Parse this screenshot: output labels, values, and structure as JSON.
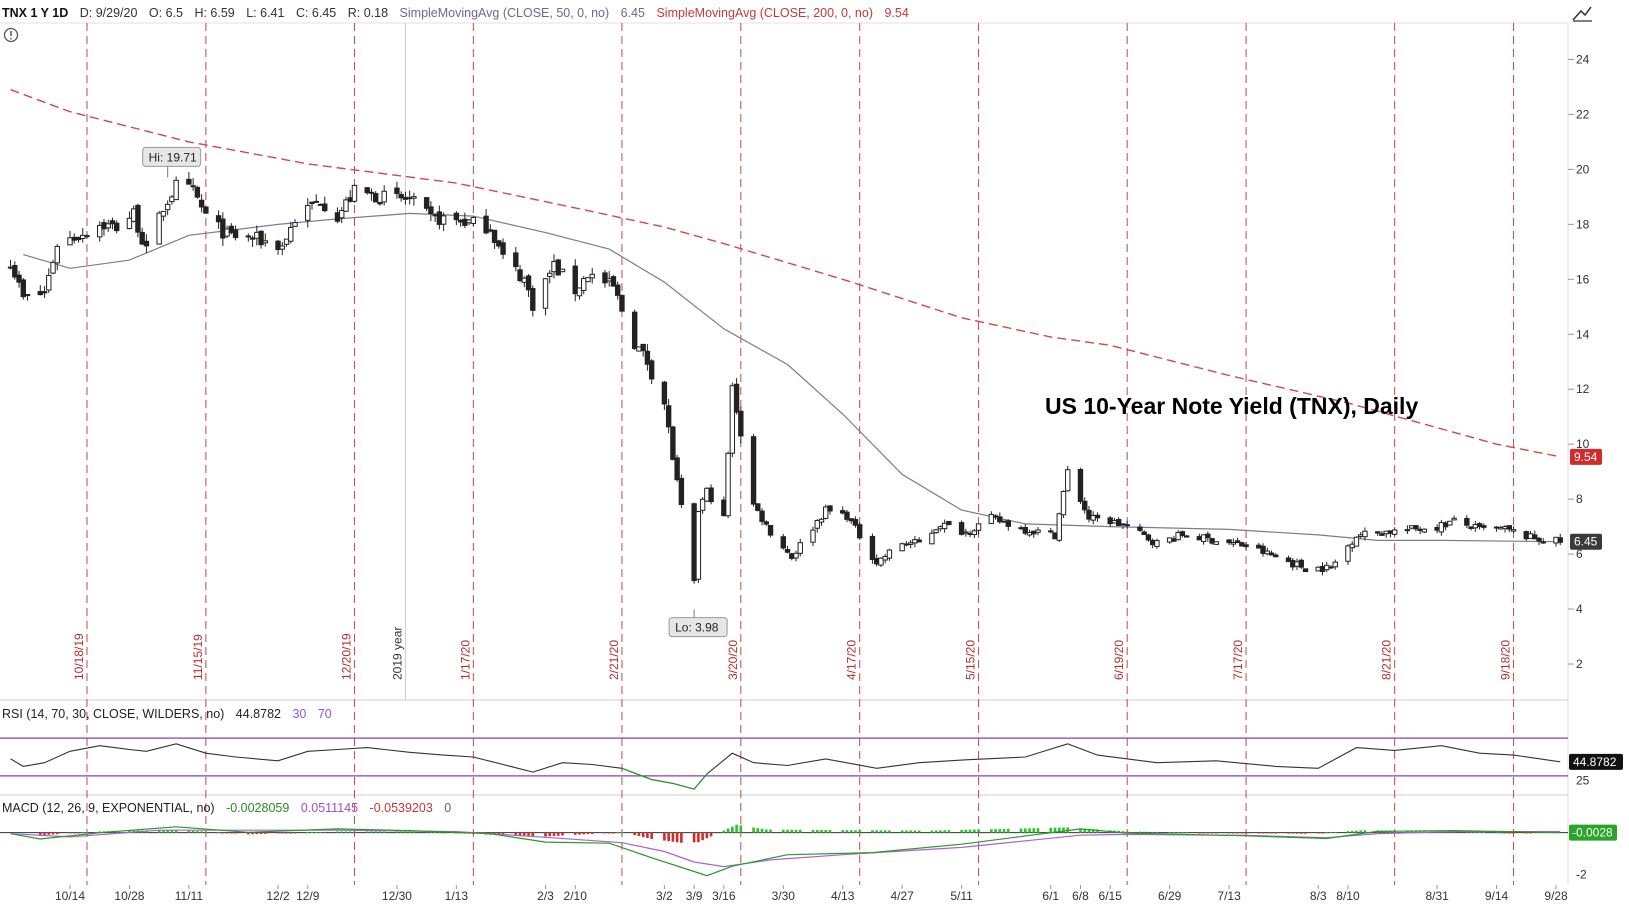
{
  "header": {
    "symbol": "TNX 1 Y 1D",
    "date": "D: 9/29/20",
    "open": "O: 6.5",
    "high": "H: 6.59",
    "low": "L: 6.41",
    "close": "C: 6.45",
    "range": "R: 0.18",
    "sma50_label": "SimpleMovingAvg (CLOSE, 50, 0, no)",
    "sma50_value": "6.45",
    "sma200_label": "SimpleMovingAvg (CLOSE, 200, 0, no)",
    "sma200_value": "9.54"
  },
  "rsi_header": {
    "label": "RSI (14, 70, 30, CLOSE, WILDERS, no)",
    "value": "44.8782",
    "oversold": "30",
    "overbought": "70"
  },
  "macd_header": {
    "label": "MACD (12, 26, 9, EXPONENTIAL, no)",
    "value": "-0.0028059",
    "avg": "0.0511145",
    "diff": "-0.0539203",
    "zero": "0"
  },
  "colors": {
    "sma50": "#7a7a9a",
    "sma200": "#d04a4a",
    "rsi_line": "#333333",
    "rsi_bands": "#8a3fb5",
    "macd_value": "#2a9a2a",
    "macd_avg": "#b060d0",
    "hist_pos": "#2ec22e",
    "hist_neg": "#d62a2a",
    "vline": "#c24848"
  },
  "icons": {
    "alert": "alert-circle-icon",
    "drawing": "drawing-tool-icon"
  },
  "chart_data": {
    "type": "candlestick",
    "title": "US 10-Year Note Yield (TNX), Daily",
    "ylim": [
      0.8,
      25
    ],
    "yticks": [
      2,
      4,
      6,
      8,
      10,
      12,
      14,
      16,
      18,
      20,
      22,
      24
    ],
    "xtick_labels": [
      "10/14",
      "10/28",
      "11/11",
      "12/2",
      "12/9",
      "12/30",
      "1/13",
      "2/3",
      "2/10",
      "3/2",
      "3/9",
      "3/16",
      "3/30",
      "4/13",
      "4/27",
      "5/11",
      "6/1",
      "6/8",
      "6/15",
      "6/29",
      "7/13",
      "8/3",
      "8/10",
      "8/31",
      "9/14",
      "9/28"
    ],
    "xtick_dates": [
      "2019-10-14",
      "2019-10-28",
      "2019-11-11",
      "2019-12-02",
      "2019-12-09",
      "2019-12-30",
      "2020-01-13",
      "2020-02-03",
      "2020-02-10",
      "2020-03-02",
      "2020-03-09",
      "2020-03-16",
      "2020-03-30",
      "2020-04-13",
      "2020-04-27",
      "2020-05-11",
      "2020-06-01",
      "2020-06-08",
      "2020-06-15",
      "2020-06-29",
      "2020-07-13",
      "2020-08-03",
      "2020-08-10",
      "2020-08-31",
      "2020-09-14",
      "2020-09-28"
    ],
    "expiration_lines": [
      {
        "date": "2019-10-18",
        "label": "10/18/19"
      },
      {
        "date": "2019-11-15",
        "label": "11/15/19"
      },
      {
        "date": "2019-12-20",
        "label": "12/20/19"
      },
      {
        "date": "2020-01-17",
        "label": "1/17/20"
      },
      {
        "date": "2020-02-21",
        "label": "2/21/20"
      },
      {
        "date": "2020-03-20",
        "label": "3/20/20"
      },
      {
        "date": "2020-04-17",
        "label": "4/17/20"
      },
      {
        "date": "2020-05-15",
        "label": "5/15/20"
      },
      {
        "date": "2020-06-19",
        "label": "6/19/20"
      },
      {
        "date": "2020-07-17",
        "label": "7/17/20"
      },
      {
        "date": "2020-08-21",
        "label": "8/21/20"
      },
      {
        "date": "2020-09-18",
        "label": "9/18/20"
      }
    ],
    "year_marker": {
      "date": "2020-01-01",
      "label": "2019 year"
    },
    "close_points": [
      [
        "2019-09-30",
        16.7
      ],
      [
        "2019-10-03",
        15.3
      ],
      [
        "2019-10-08",
        15.5
      ],
      [
        "2019-10-11",
        17.3
      ],
      [
        "2019-10-16",
        17.6
      ],
      [
        "2019-10-21",
        18.0
      ],
      [
        "2019-10-25",
        17.9
      ],
      [
        "2019-10-29",
        18.4
      ],
      [
        "2019-11-01",
        17.0
      ],
      [
        "2019-11-05",
        18.6
      ],
      [
        "2019-11-08",
        19.4
      ],
      [
        "2019-11-12",
        19.2
      ],
      [
        "2019-11-15",
        18.3
      ],
      [
        "2019-11-20",
        17.6
      ],
      [
        "2019-11-26",
        17.5
      ],
      [
        "2019-12-03",
        17.2
      ],
      [
        "2019-12-06",
        18.2
      ],
      [
        "2019-12-12",
        18.9
      ],
      [
        "2019-12-16",
        18.3
      ],
      [
        "2019-12-20",
        19.2
      ],
      [
        "2019-12-26",
        19.0
      ],
      [
        "2020-01-02",
        18.9
      ],
      [
        "2020-01-07",
        18.2
      ],
      [
        "2020-01-10",
        18.2
      ],
      [
        "2020-01-15",
        18.1
      ],
      [
        "2020-01-21",
        17.9
      ],
      [
        "2020-01-24",
        16.8
      ],
      [
        "2020-01-29",
        16.0
      ],
      [
        "2020-01-31",
        15.1
      ],
      [
        "2020-02-05",
        16.5
      ],
      [
        "2020-02-10",
        15.6
      ],
      [
        "2020-02-13",
        16.2
      ],
      [
        "2020-02-19",
        15.7
      ],
      [
        "2020-02-24",
        13.7
      ],
      [
        "2020-02-27",
        13.0
      ],
      [
        "2020-03-02",
        11.5
      ],
      [
        "2020-03-04",
        9.5
      ],
      [
        "2020-03-06",
        7.7
      ],
      [
        "2020-03-09",
        4.9
      ],
      [
        "2020-03-10",
        7.6
      ],
      [
        "2020-03-12",
        8.3
      ],
      [
        "2020-03-16",
        7.3
      ],
      [
        "2020-03-18",
        12.0
      ],
      [
        "2020-03-19",
        11.3
      ],
      [
        "2020-03-23",
        7.8
      ],
      [
        "2020-03-27",
        6.8
      ],
      [
        "2020-04-01",
        5.9
      ],
      [
        "2020-04-07",
        7.2
      ],
      [
        "2020-04-09",
        7.6
      ],
      [
        "2020-04-14",
        7.4
      ],
      [
        "2020-04-21",
        5.7
      ],
      [
        "2020-04-27",
        6.4
      ],
      [
        "2020-05-01",
        6.4
      ],
      [
        "2020-05-06",
        7.1
      ],
      [
        "2020-05-12",
        6.8
      ],
      [
        "2020-05-18",
        7.3
      ],
      [
        "2020-05-26",
        6.9
      ],
      [
        "2020-06-02",
        6.7
      ],
      [
        "2020-06-05",
        9.0
      ],
      [
        "2020-06-10",
        7.3
      ],
      [
        "2020-06-15",
        7.2
      ],
      [
        "2020-06-19",
        7.0
      ],
      [
        "2020-06-26",
        6.4
      ],
      [
        "2020-07-02",
        6.7
      ],
      [
        "2020-07-10",
        6.5
      ],
      [
        "2020-07-17",
        6.3
      ],
      [
        "2020-07-24",
        5.9
      ],
      [
        "2020-07-31",
        5.5
      ],
      [
        "2020-08-06",
        5.5
      ],
      [
        "2020-08-12",
        6.7
      ],
      [
        "2020-08-18",
        6.8
      ],
      [
        "2020-08-25",
        6.9
      ],
      [
        "2020-08-31",
        7.0
      ],
      [
        "2020-09-04",
        7.2
      ],
      [
        "2020-09-10",
        6.9
      ],
      [
        "2020-09-16",
        6.9
      ],
      [
        "2020-09-22",
        6.6
      ],
      [
        "2020-09-29",
        6.45
      ]
    ],
    "sma50": [
      [
        "2019-10-03",
        16.9
      ],
      [
        "2019-10-14",
        16.4
      ],
      [
        "2019-10-28",
        16.7
      ],
      [
        "2019-11-11",
        17.6
      ],
      [
        "2019-12-02",
        18.0
      ],
      [
        "2019-12-16",
        18.2
      ],
      [
        "2020-01-02",
        18.4
      ],
      [
        "2020-01-17",
        18.3
      ],
      [
        "2020-02-03",
        17.7
      ],
      [
        "2020-02-18",
        17.1
      ],
      [
        "2020-03-02",
        15.9
      ],
      [
        "2020-03-16",
        14.2
      ],
      [
        "2020-03-31",
        12.9
      ],
      [
        "2020-04-13",
        11.1
      ],
      [
        "2020-04-27",
        8.9
      ],
      [
        "2020-05-11",
        7.6
      ],
      [
        "2020-05-26",
        7.1
      ],
      [
        "2020-06-15",
        7.0
      ],
      [
        "2020-07-13",
        6.9
      ],
      [
        "2020-08-03",
        6.7
      ],
      [
        "2020-08-17",
        6.5
      ],
      [
        "2020-09-01",
        6.5
      ],
      [
        "2020-09-29",
        6.45
      ]
    ],
    "sma200": [
      [
        "2019-09-30",
        22.9
      ],
      [
        "2019-10-14",
        22.1
      ],
      [
        "2019-11-11",
        21.0
      ],
      [
        "2019-12-09",
        20.2
      ],
      [
        "2020-01-13",
        19.5
      ],
      [
        "2020-02-10",
        18.6
      ],
      [
        "2020-03-02",
        17.9
      ],
      [
        "2020-03-16",
        17.3
      ],
      [
        "2020-04-13",
        16.0
      ],
      [
        "2020-05-11",
        14.6
      ],
      [
        "2020-06-01",
        13.9
      ],
      [
        "2020-06-15",
        13.6
      ],
      [
        "2020-07-13",
        12.5
      ],
      [
        "2020-08-10",
        11.5
      ],
      [
        "2020-08-31",
        10.6
      ],
      [
        "2020-09-14",
        10.0
      ],
      [
        "2020-09-29",
        9.54
      ]
    ],
    "annotations": [
      {
        "label": "Hi: 19.71",
        "date": "2019-11-06",
        "value": 19.71
      },
      {
        "label": "Lo: 3.98",
        "date": "2020-03-09",
        "value": 3.98
      }
    ],
    "last_price_tags": [
      {
        "label": "9.54",
        "value": 9.54,
        "series": "sma200"
      },
      {
        "label": "6.45",
        "value": 6.45,
        "series": "close"
      }
    ]
  },
  "rsi_data": {
    "ylim": [
      15,
      85
    ],
    "yticks": [
      25
    ],
    "levels": [
      30,
      70
    ],
    "last_value_label": "44.8782",
    "points": [
      [
        "2019-09-30",
        48
      ],
      [
        "2019-10-03",
        40
      ],
      [
        "2019-10-08",
        44
      ],
      [
        "2019-10-14",
        56
      ],
      [
        "2019-10-21",
        62
      ],
      [
        "2019-10-28",
        58
      ],
      [
        "2019-11-01",
        56
      ],
      [
        "2019-11-08",
        64
      ],
      [
        "2019-11-15",
        54
      ],
      [
        "2019-11-22",
        50
      ],
      [
        "2019-12-02",
        46
      ],
      [
        "2019-12-09",
        56
      ],
      [
        "2019-12-16",
        58
      ],
      [
        "2019-12-23",
        60
      ],
      [
        "2020-01-02",
        55
      ],
      [
        "2020-01-10",
        52
      ],
      [
        "2020-01-17",
        50
      ],
      [
        "2020-01-24",
        42
      ],
      [
        "2020-01-31",
        34
      ],
      [
        "2020-02-07",
        44
      ],
      [
        "2020-02-14",
        42
      ],
      [
        "2020-02-21",
        38
      ],
      [
        "2020-02-28",
        26
      ],
      [
        "2020-03-04",
        22
      ],
      [
        "2020-03-09",
        16
      ],
      [
        "2020-03-12",
        32
      ],
      [
        "2020-03-18",
        54
      ],
      [
        "2020-03-23",
        44
      ],
      [
        "2020-03-31",
        41
      ],
      [
        "2020-04-09",
        48
      ],
      [
        "2020-04-21",
        38
      ],
      [
        "2020-05-01",
        44
      ],
      [
        "2020-05-12",
        47
      ],
      [
        "2020-05-26",
        50
      ],
      [
        "2020-06-05",
        64
      ],
      [
        "2020-06-12",
        52
      ],
      [
        "2020-06-26",
        44
      ],
      [
        "2020-07-10",
        46
      ],
      [
        "2020-07-24",
        40
      ],
      [
        "2020-08-03",
        38
      ],
      [
        "2020-08-12",
        60
      ],
      [
        "2020-08-21",
        57
      ],
      [
        "2020-09-01",
        62
      ],
      [
        "2020-09-10",
        54
      ],
      [
        "2020-09-18",
        52
      ],
      [
        "2020-09-29",
        44.88
      ]
    ]
  },
  "macd_data": {
    "ylim": [
      -2.4,
      0.7
    ],
    "yticks": [
      -2
    ],
    "last_value_label": "-0.0028",
    "value_line": [
      [
        "2019-09-30",
        -0.05
      ],
      [
        "2019-10-07",
        -0.3
      ],
      [
        "2019-10-21",
        0.0
      ],
      [
        "2019-11-08",
        0.28
      ],
      [
        "2019-11-25",
        0.02
      ],
      [
        "2019-12-16",
        0.18
      ],
      [
        "2020-01-02",
        0.1
      ],
      [
        "2020-01-21",
        -0.05
      ],
      [
        "2020-02-03",
        -0.45
      ],
      [
        "2020-02-18",
        -0.5
      ],
      [
        "2020-02-28",
        -1.2
      ],
      [
        "2020-03-09",
        -1.85
      ],
      [
        "2020-03-12",
        -2.05
      ],
      [
        "2020-03-18",
        -1.6
      ],
      [
        "2020-03-31",
        -1.05
      ],
      [
        "2020-04-20",
        -0.95
      ],
      [
        "2020-05-11",
        -0.55
      ],
      [
        "2020-06-08",
        0.18
      ],
      [
        "2020-06-19",
        -0.02
      ],
      [
        "2020-07-17",
        -0.15
      ],
      [
        "2020-08-05",
        -0.28
      ],
      [
        "2020-08-17",
        0.06
      ],
      [
        "2020-09-04",
        0.1
      ],
      [
        "2020-09-29",
        0.0
      ]
    ],
    "avg_line": [
      [
        "2019-09-30",
        -0.05
      ],
      [
        "2019-10-14",
        -0.2
      ],
      [
        "2019-11-04",
        0.12
      ],
      [
        "2019-11-25",
        0.12
      ],
      [
        "2019-12-16",
        0.12
      ],
      [
        "2020-01-13",
        0.05
      ],
      [
        "2020-02-03",
        -0.22
      ],
      [
        "2020-02-21",
        -0.48
      ],
      [
        "2020-03-02",
        -0.9
      ],
      [
        "2020-03-09",
        -1.4
      ],
      [
        "2020-03-16",
        -1.62
      ],
      [
        "2020-03-27",
        -1.3
      ],
      [
        "2020-04-13",
        -1.05
      ],
      [
        "2020-05-11",
        -0.7
      ],
      [
        "2020-06-08",
        -0.12
      ],
      [
        "2020-06-19",
        -0.08
      ],
      [
        "2020-07-17",
        -0.13
      ],
      [
        "2020-08-05",
        -0.24
      ],
      [
        "2020-08-17",
        -0.05
      ],
      [
        "2020-09-04",
        0.05
      ],
      [
        "2020-09-29",
        0.05
      ]
    ],
    "histogram": [
      [
        "2019-10-07",
        -0.12
      ],
      [
        "2019-10-21",
        0.06
      ],
      [
        "2019-11-08",
        0.14
      ],
      [
        "2019-11-25",
        -0.08
      ],
      [
        "2019-12-16",
        0.06
      ],
      [
        "2020-01-06",
        0.04
      ],
      [
        "2020-01-21",
        -0.1
      ],
      [
        "2020-02-03",
        -0.18
      ],
      [
        "2020-02-21",
        0.02
      ],
      [
        "2020-02-28",
        -0.3
      ],
      [
        "2020-03-06",
        -0.48
      ],
      [
        "2020-03-10",
        -0.45
      ],
      [
        "2020-03-19",
        0.38
      ],
      [
        "2020-03-26",
        0.15
      ],
      [
        "2020-04-13",
        0.12
      ],
      [
        "2020-05-04",
        0.1
      ],
      [
        "2020-06-05",
        0.25
      ],
      [
        "2020-06-19",
        0.06
      ],
      [
        "2020-07-10",
        -0.02
      ],
      [
        "2020-07-31",
        -0.05
      ],
      [
        "2020-08-14",
        0.12
      ],
      [
        "2020-09-04",
        0.05
      ],
      [
        "2020-09-22",
        -0.03
      ]
    ]
  }
}
